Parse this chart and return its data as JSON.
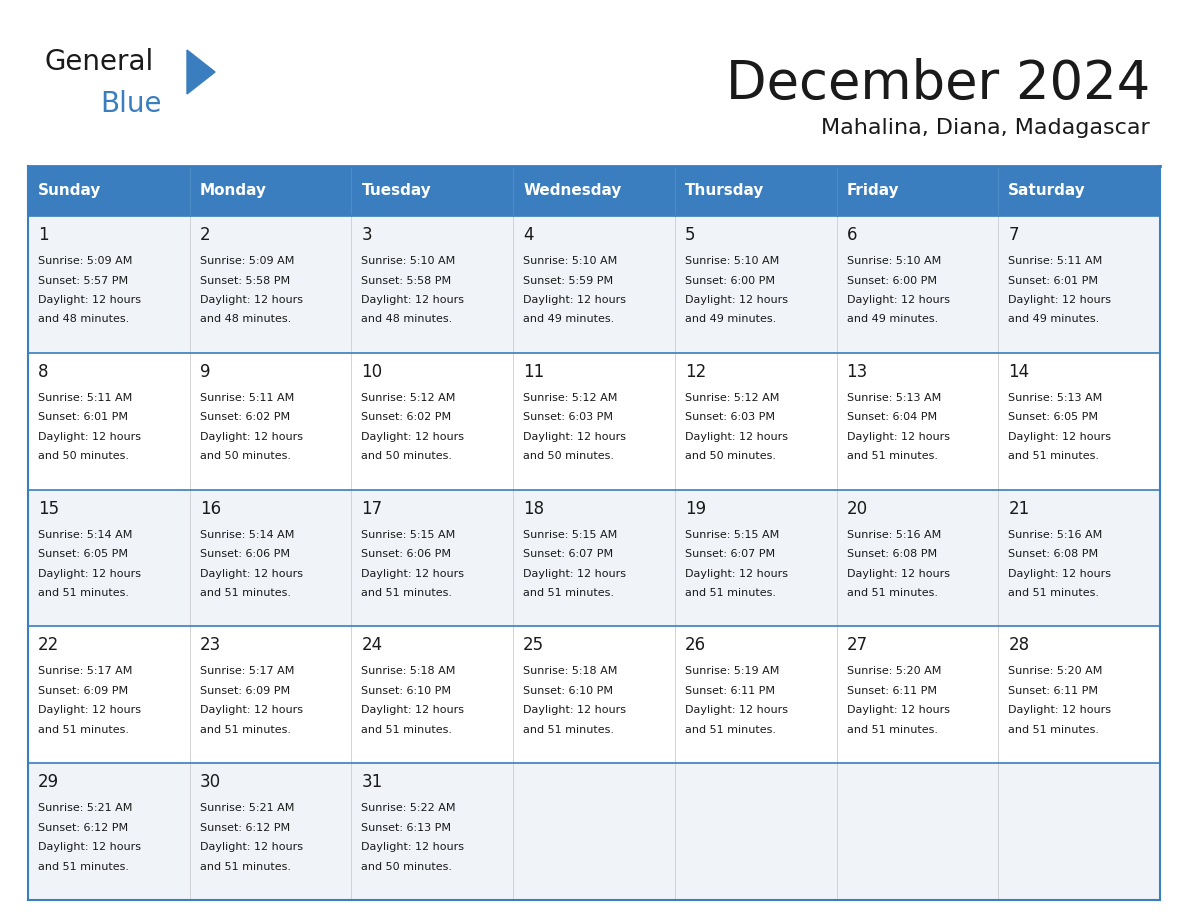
{
  "title": "December 2024",
  "subtitle": "Mahalina, Diana, Madagascar",
  "header_color": "#3a7ebf",
  "header_text_color": "#ffffff",
  "cell_bg_even": "#f0f4f8",
  "cell_bg_odd": "#ffffff",
  "border_color": "#3a7ebf",
  "text_color": "#1a1a1a",
  "day_headers": [
    "Sunday",
    "Monday",
    "Tuesday",
    "Wednesday",
    "Thursday",
    "Friday",
    "Saturday"
  ],
  "days": [
    {
      "day": 1,
      "col": 0,
      "row": 0,
      "sunrise": "5:09 AM",
      "sunset": "5:57 PM",
      "daylight": "12 hours and 48 minutes."
    },
    {
      "day": 2,
      "col": 1,
      "row": 0,
      "sunrise": "5:09 AM",
      "sunset": "5:58 PM",
      "daylight": "12 hours and 48 minutes."
    },
    {
      "day": 3,
      "col": 2,
      "row": 0,
      "sunrise": "5:10 AM",
      "sunset": "5:58 PM",
      "daylight": "12 hours and 48 minutes."
    },
    {
      "day": 4,
      "col": 3,
      "row": 0,
      "sunrise": "5:10 AM",
      "sunset": "5:59 PM",
      "daylight": "12 hours and 49 minutes."
    },
    {
      "day": 5,
      "col": 4,
      "row": 0,
      "sunrise": "5:10 AM",
      "sunset": "6:00 PM",
      "daylight": "12 hours and 49 minutes."
    },
    {
      "day": 6,
      "col": 5,
      "row": 0,
      "sunrise": "5:10 AM",
      "sunset": "6:00 PM",
      "daylight": "12 hours and 49 minutes."
    },
    {
      "day": 7,
      "col": 6,
      "row": 0,
      "sunrise": "5:11 AM",
      "sunset": "6:01 PM",
      "daylight": "12 hours and 49 minutes."
    },
    {
      "day": 8,
      "col": 0,
      "row": 1,
      "sunrise": "5:11 AM",
      "sunset": "6:01 PM",
      "daylight": "12 hours and 50 minutes."
    },
    {
      "day": 9,
      "col": 1,
      "row": 1,
      "sunrise": "5:11 AM",
      "sunset": "6:02 PM",
      "daylight": "12 hours and 50 minutes."
    },
    {
      "day": 10,
      "col": 2,
      "row": 1,
      "sunrise": "5:12 AM",
      "sunset": "6:02 PM",
      "daylight": "12 hours and 50 minutes."
    },
    {
      "day": 11,
      "col": 3,
      "row": 1,
      "sunrise": "5:12 AM",
      "sunset": "6:03 PM",
      "daylight": "12 hours and 50 minutes."
    },
    {
      "day": 12,
      "col": 4,
      "row": 1,
      "sunrise": "5:12 AM",
      "sunset": "6:03 PM",
      "daylight": "12 hours and 50 minutes."
    },
    {
      "day": 13,
      "col": 5,
      "row": 1,
      "sunrise": "5:13 AM",
      "sunset": "6:04 PM",
      "daylight": "12 hours and 51 minutes."
    },
    {
      "day": 14,
      "col": 6,
      "row": 1,
      "sunrise": "5:13 AM",
      "sunset": "6:05 PM",
      "daylight": "12 hours and 51 minutes."
    },
    {
      "day": 15,
      "col": 0,
      "row": 2,
      "sunrise": "5:14 AM",
      "sunset": "6:05 PM",
      "daylight": "12 hours and 51 minutes."
    },
    {
      "day": 16,
      "col": 1,
      "row": 2,
      "sunrise": "5:14 AM",
      "sunset": "6:06 PM",
      "daylight": "12 hours and 51 minutes."
    },
    {
      "day": 17,
      "col": 2,
      "row": 2,
      "sunrise": "5:15 AM",
      "sunset": "6:06 PM",
      "daylight": "12 hours and 51 minutes."
    },
    {
      "day": 18,
      "col": 3,
      "row": 2,
      "sunrise": "5:15 AM",
      "sunset": "6:07 PM",
      "daylight": "12 hours and 51 minutes."
    },
    {
      "day": 19,
      "col": 4,
      "row": 2,
      "sunrise": "5:15 AM",
      "sunset": "6:07 PM",
      "daylight": "12 hours and 51 minutes."
    },
    {
      "day": 20,
      "col": 5,
      "row": 2,
      "sunrise": "5:16 AM",
      "sunset": "6:08 PM",
      "daylight": "12 hours and 51 minutes."
    },
    {
      "day": 21,
      "col": 6,
      "row": 2,
      "sunrise": "5:16 AM",
      "sunset": "6:08 PM",
      "daylight": "12 hours and 51 minutes."
    },
    {
      "day": 22,
      "col": 0,
      "row": 3,
      "sunrise": "5:17 AM",
      "sunset": "6:09 PM",
      "daylight": "12 hours and 51 minutes."
    },
    {
      "day": 23,
      "col": 1,
      "row": 3,
      "sunrise": "5:17 AM",
      "sunset": "6:09 PM",
      "daylight": "12 hours and 51 minutes."
    },
    {
      "day": 24,
      "col": 2,
      "row": 3,
      "sunrise": "5:18 AM",
      "sunset": "6:10 PM",
      "daylight": "12 hours and 51 minutes."
    },
    {
      "day": 25,
      "col": 3,
      "row": 3,
      "sunrise": "5:18 AM",
      "sunset": "6:10 PM",
      "daylight": "12 hours and 51 minutes."
    },
    {
      "day": 26,
      "col": 4,
      "row": 3,
      "sunrise": "5:19 AM",
      "sunset": "6:11 PM",
      "daylight": "12 hours and 51 minutes."
    },
    {
      "day": 27,
      "col": 5,
      "row": 3,
      "sunrise": "5:20 AM",
      "sunset": "6:11 PM",
      "daylight": "12 hours and 51 minutes."
    },
    {
      "day": 28,
      "col": 6,
      "row": 3,
      "sunrise": "5:20 AM",
      "sunset": "6:11 PM",
      "daylight": "12 hours and 51 minutes."
    },
    {
      "day": 29,
      "col": 0,
      "row": 4,
      "sunrise": "5:21 AM",
      "sunset": "6:12 PM",
      "daylight": "12 hours and 51 minutes."
    },
    {
      "day": 30,
      "col": 1,
      "row": 4,
      "sunrise": "5:21 AM",
      "sunset": "6:12 PM",
      "daylight": "12 hours and 51 minutes."
    },
    {
      "day": 31,
      "col": 2,
      "row": 4,
      "sunrise": "5:22 AM",
      "sunset": "6:13 PM",
      "daylight": "12 hours and 50 minutes."
    }
  ],
  "num_rows": 5,
  "num_cols": 7,
  "logo_general_color": "#1a1a1a",
  "logo_blue_color": "#3a7ebf",
  "title_fontsize": 38,
  "subtitle_fontsize": 16,
  "header_fontsize": 11,
  "day_num_fontsize": 12,
  "cell_text_fontsize": 8
}
